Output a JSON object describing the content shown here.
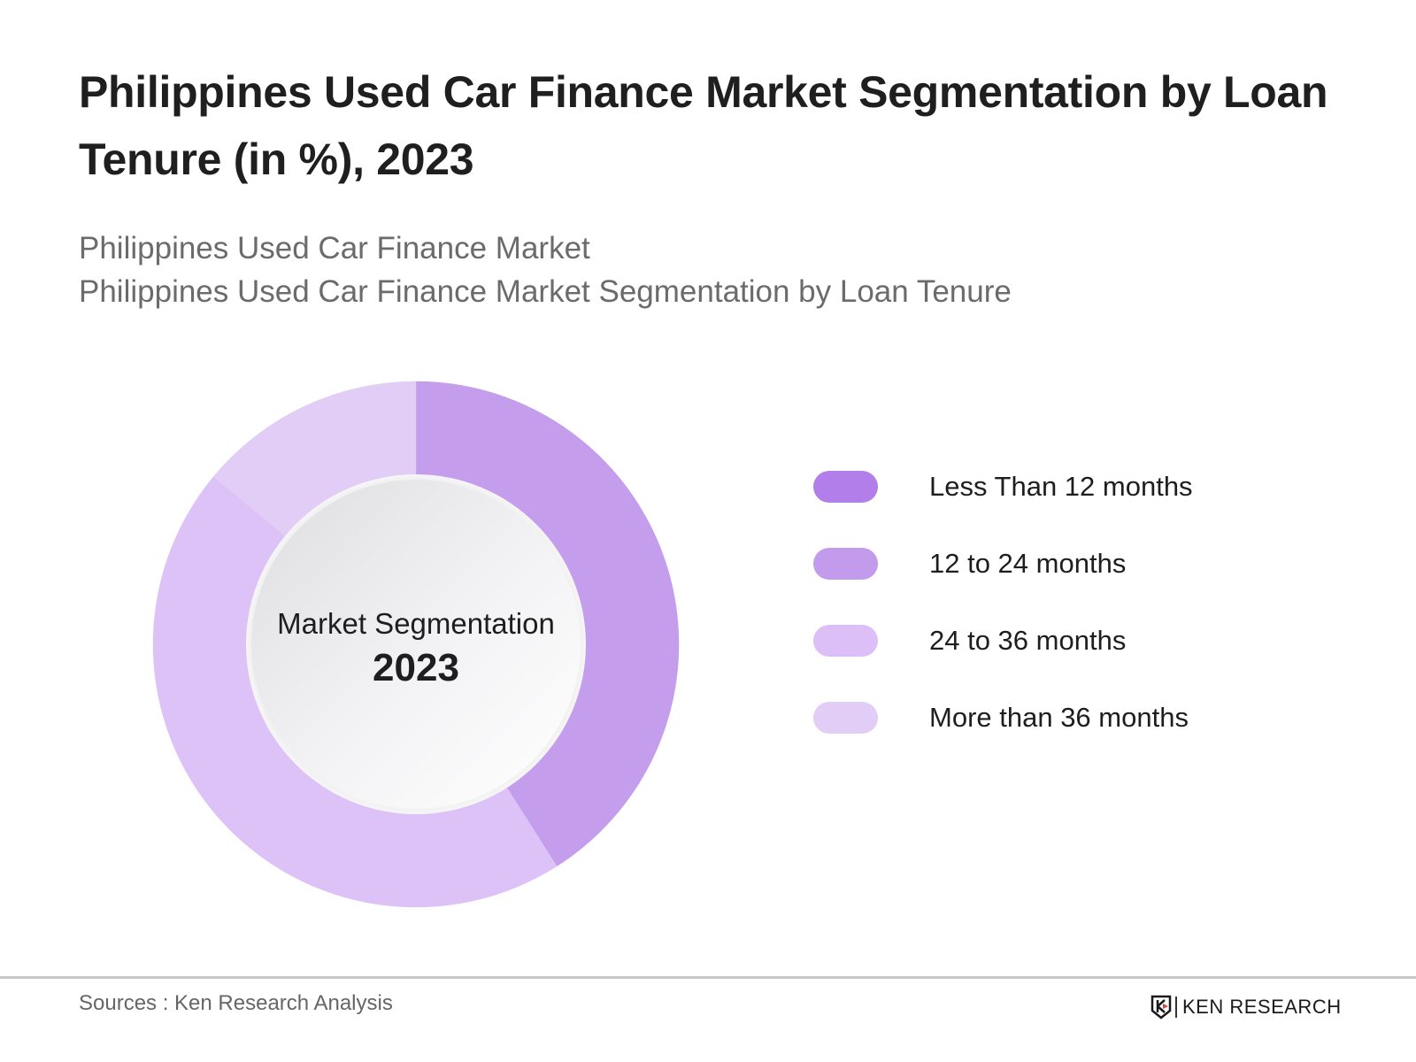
{
  "header": {
    "title": "Philippines Used Car Finance Market Segmentation by Loan Tenure (in %), 2023",
    "subtitle_lines": [
      "Philippines Used Car Finance Market",
      "Philippines Used Car Finance Market Segmentation by Loan Tenure"
    ]
  },
  "donut_center": {
    "line1": "Market Segmentation",
    "line2": "2023"
  },
  "legend": [
    {
      "label": "Less Than 12 months",
      "color": "#b27fea"
    },
    {
      "label": "12 to 24 months",
      "color": "#c39bec"
    },
    {
      "label": "24 to 36 months",
      "color": "#dbbff6"
    },
    {
      "label": "More than 36 months",
      "color": "#e2cdf6"
    }
  ],
  "footer": {
    "source": "Sources : Ken Research Analysis",
    "logo_text": "KEN RESEARCH"
  },
  "chart_data": {
    "type": "pie",
    "subtype": "donut",
    "title": "Philippines Used Car Finance Market Segmentation by Loan Tenure (in %), 2023",
    "center_text": [
      "Market Segmentation",
      "2023"
    ],
    "categories": [
      "Less Than 12 months",
      "12 to 24 months",
      "24 to 36 months",
      "More than 36 months"
    ],
    "values": [
      11,
      30,
      45,
      14
    ],
    "slice_colors": [
      "#c59ded",
      "#c59ded",
      "#dcc2f6",
      "#e2cdf6"
    ],
    "unit": "%",
    "start_angle_deg": 0,
    "direction": "clockwise",
    "legend_position": "right",
    "data_labels": false
  }
}
